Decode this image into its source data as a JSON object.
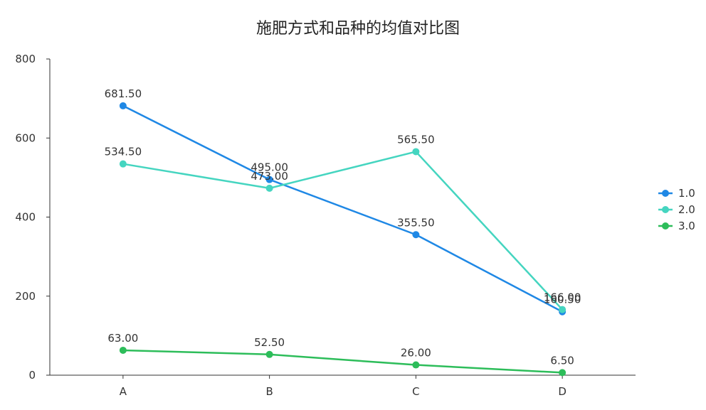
{
  "chart_data": {
    "type": "line",
    "title": "施肥方式和品种的均值对比图",
    "xlabel": "",
    "ylabel": "",
    "categories": [
      "A",
      "B",
      "C",
      "D"
    ],
    "ylim": [
      0,
      800
    ],
    "yticks": [
      0,
      200,
      400,
      600,
      800
    ],
    "grid": false,
    "legend_position": "right",
    "series": [
      {
        "name": "1.0",
        "color": "#1f88e5",
        "values": [
          681.5,
          495.0,
          355.5,
          160.5
        ],
        "labels": [
          "681.50",
          "495.00",
          "355.50",
          "160.50"
        ]
      },
      {
        "name": "2.0",
        "color": "#45d5c0",
        "values": [
          534.5,
          473.0,
          565.5,
          166.0
        ],
        "labels": [
          "534.50",
          "473.00",
          "565.50",
          "166.00"
        ]
      },
      {
        "name": "3.0",
        "color": "#2dbd5a",
        "values": [
          63.0,
          52.5,
          26.0,
          6.5
        ],
        "labels": [
          "63.00",
          "52.50",
          "26.00",
          "6.50"
        ]
      }
    ]
  }
}
